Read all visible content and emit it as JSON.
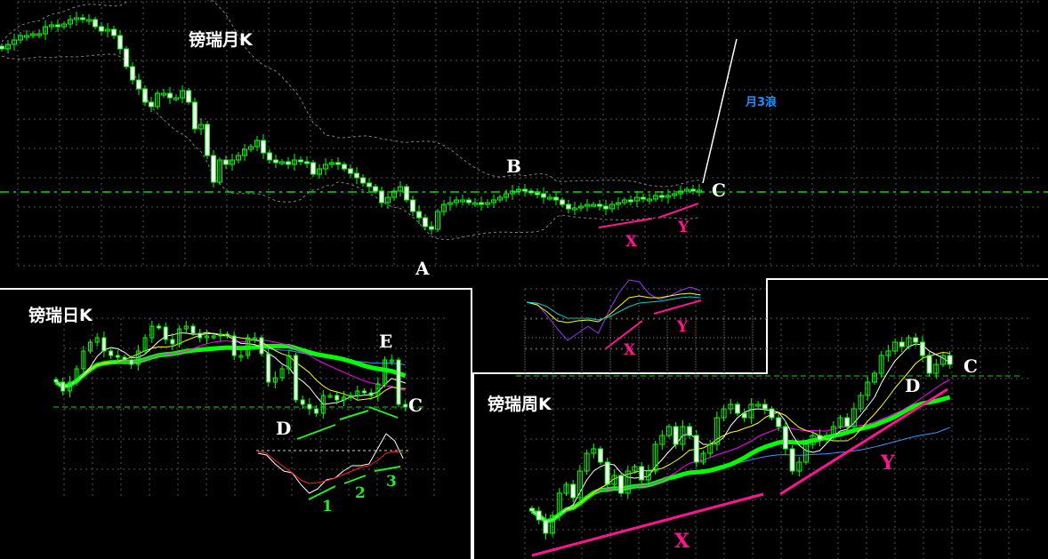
{
  "colors": {
    "up": "#00ff00",
    "down": "#ffffff",
    "level_line": "#00dd00",
    "band": "#808080",
    "ma5": "#ffffff",
    "ma10": "#ffff00",
    "ma20": "#ff00ff",
    "ma30": "#00ff00",
    "ma60": "#3399ff",
    "annot_pink": "#ff1493",
    "annot_green": "#22ee22",
    "annot_blue": "#1e90ff"
  },
  "chart_data": [
    {
      "type": "candlestick",
      "title": "镑瑞月K",
      "indicators": [
        "bollinger-bands"
      ],
      "grid": true,
      "closes": [
        265,
        270,
        275,
        280,
        280,
        282,
        282,
        290,
        292,
        290,
        293,
        298,
        300,
        298,
        298,
        290,
        285,
        287,
        280,
        265,
        245,
        230,
        220,
        205,
        200,
        215,
        215,
        210,
        210,
        218,
        205,
        175,
        180,
        145,
        115,
        140,
        135,
        140,
        145,
        152,
        155,
        162,
        148,
        140,
        137,
        138,
        135,
        140,
        138,
        137,
        124,
        130,
        135,
        137,
        135,
        130,
        125,
        120,
        114,
        110,
        105,
        92,
        98,
        105,
        110,
        95,
        82,
        75,
        65,
        62,
        82,
        90,
        92,
        95,
        95,
        92,
        92,
        90,
        92,
        95,
        98,
        102,
        105,
        107,
        105,
        103,
        102,
        98,
        98,
        95,
        90,
        85,
        86,
        88,
        90,
        90,
        88,
        85,
        90,
        92,
        95,
        94,
        98,
        96,
        96,
        100,
        98,
        100,
        102,
        105,
        107,
        106,
        106
      ],
      "annotations": {
        "A": "A",
        "B": "B",
        "C": "C",
        "X": "X",
        "Y": "Y",
        "wave": "月3浪"
      },
      "oscillator": {
        "lines": [
          {
            "color": "#9933ff",
            "values": [
              5,
              3,
              -10,
              -25,
              -38,
              -30,
              -22,
              -30,
              -6,
              15,
              30,
              28,
              14,
              8,
              12,
              18,
              22,
              18
            ]
          },
          {
            "color": "#ffff00",
            "values": [
              5,
              2,
              -6,
              -16,
              -18,
              -16,
              -15,
              -17,
              -10,
              0,
              10,
              12,
              10,
              10,
              12,
              14,
              15,
              13
            ]
          },
          {
            "color": "#00cccc",
            "values": [
              5,
              4,
              0,
              -8,
              -13,
              -13,
              -13,
              -15,
              -12,
              -6,
              0,
              4,
              5,
              6,
              8,
              10,
              11,
              10
            ]
          }
        ]
      }
    },
    {
      "type": "candlestick",
      "title": "镑瑞日K",
      "indicators": [
        "MA5",
        "MA10",
        "MA20",
        "MA30",
        "MA60"
      ],
      "grid": true,
      "closes": [
        90,
        80,
        90,
        105,
        125,
        135,
        140,
        125,
        120,
        118,
        115,
        110,
        125,
        140,
        153,
        152,
        138,
        133,
        150,
        153,
        145,
        140,
        142,
        142,
        144,
        142,
        120,
        120,
        140,
        140,
        122,
        90,
        95,
        105,
        120,
        70,
        65,
        60,
        55,
        75,
        75,
        70,
        73,
        75,
        80,
        78,
        75,
        88,
        115,
        115,
        65,
        62
      ],
      "annotations": {
        "C": "C",
        "D": "D",
        "E": "E",
        "n1": "1",
        "n2": "2",
        "n3": "3"
      },
      "oscillator": {
        "lines": [
          {
            "color": "#ffffff",
            "values": [
              0,
              -2,
              -12,
              -20,
              -22,
              -35,
              -45,
              -40,
              -30,
              -28,
              -20,
              -14,
              -14,
              -12,
              5,
              22,
              14,
              -6
            ]
          },
          {
            "color": "#ff2020",
            "values": [
              2,
              0,
              -8,
              -15,
              -22,
              -30,
              -34,
              -33,
              -31,
              -28,
              -24,
              -20,
              -16,
              -14,
              -8,
              0,
              2,
              0
            ]
          }
        ]
      }
    },
    {
      "type": "candlestick",
      "title": "镑瑞周K",
      "indicators": [
        "MA5",
        "MA10",
        "MA20",
        "MA30",
        "MA60"
      ],
      "grid": true,
      "closes": [
        65,
        55,
        40,
        60,
        85,
        95,
        80,
        110,
        130,
        135,
        120,
        95,
        105,
        85,
        110,
        115,
        100,
        110,
        140,
        150,
        160,
        140,
        160,
        150,
        120,
        130,
        140,
        170,
        180,
        185,
        175,
        170,
        185,
        185,
        180,
        170,
        160,
        135,
        110,
        120,
        140,
        150,
        145,
        150,
        160,
        170,
        160,
        180,
        195,
        210,
        220,
        240,
        245,
        255,
        250,
        260,
        255,
        240,
        220,
        230,
        240,
        230
      ],
      "annotations": {
        "C": "C",
        "D": "D",
        "X": "X",
        "Y": "Y"
      }
    }
  ]
}
